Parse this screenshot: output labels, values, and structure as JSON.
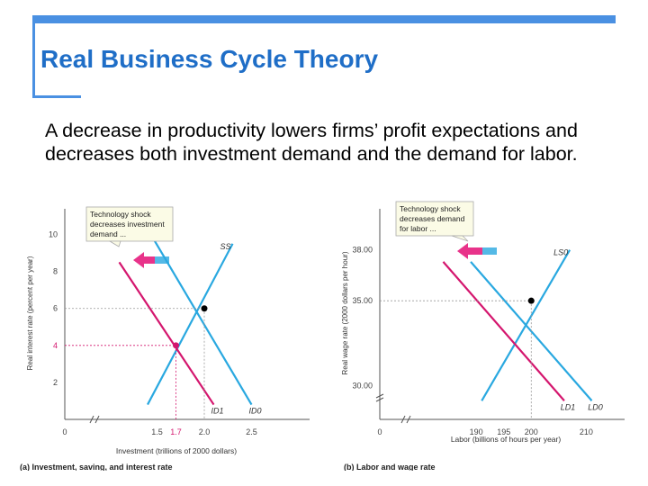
{
  "slide": {
    "title": "Real Business Cycle Theory",
    "body": "A decrease in productivity lowers firms’ profit expectations and decreases both investment demand and the demand for labor."
  },
  "colors": {
    "accent": "#4a90e2",
    "title": "#1f6ec7",
    "curve_blue": "#29a8e0",
    "curve_magenta": "#d4166e",
    "arrow": "#e8338a",
    "callout_bg": "#fbfbe6"
  },
  "chart_data": [
    {
      "type": "line",
      "xlabel": "Investment (trillions of 2000 dollars)",
      "ylabel": "Real interest rate (percent per year)",
      "caption": "(a) Investment, saving, and interest rate",
      "xlim": [
        1.0,
        3.0
      ],
      "ylim": [
        0,
        11
      ],
      "x_ticks": [
        "0",
        "1.5",
        "1.7",
        "2.0",
        "2.5"
      ],
      "x_tick_values": [
        0,
        1.5,
        1.7,
        2.0,
        2.5
      ],
      "y_ticks": [
        "2",
        "4",
        "6",
        "8",
        "10"
      ],
      "y_tick_values": [
        2,
        4,
        6,
        8,
        10
      ],
      "series": [
        {
          "name": "SS",
          "color": "#29a8e0",
          "points": [
            [
              1.4,
              0.8
            ],
            [
              2.3,
              9.5
            ]
          ]
        },
        {
          "name": "ID0",
          "color": "#29a8e0",
          "points": [
            [
              1.4,
              10.3
            ],
            [
              2.5,
              0.8
            ]
          ]
        },
        {
          "name": "ID1",
          "color": "#d4166e",
          "points": [
            [
              1.1,
              8.5
            ],
            [
              2.1,
              0.8
            ]
          ]
        }
      ],
      "points": [
        {
          "x": 2.0,
          "y": 6.0,
          "color": "#000000"
        },
        {
          "x": 1.7,
          "y": 4.0,
          "color": "#d4166e"
        }
      ],
      "highlighted_tick": {
        "x": "1.7",
        "y": "4"
      },
      "callout": [
        "Technology shock",
        "decreases investment",
        "demand ..."
      ]
    },
    {
      "type": "line",
      "xlabel": "Labor (billions of hours per year)",
      "ylabel": "Real wage rate (2000 dollars per hour)",
      "caption": "(b) Labor and wage rate",
      "xlim": [
        180,
        215
      ],
      "ylim": [
        28,
        40
      ],
      "x_ticks": [
        "0",
        "190",
        "195",
        "200",
        "210"
      ],
      "x_tick_values": [
        0,
        190,
        195,
        200,
        210
      ],
      "y_ticks": [
        "30.00",
        "35.00",
        "38.00"
      ],
      "y_tick_values": [
        30,
        35,
        38
      ],
      "series": [
        {
          "name": "LS0",
          "color": "#29a8e0",
          "points": [
            [
              191,
              29.1
            ],
            [
              207,
              38.0
            ]
          ]
        },
        {
          "name": "LD0",
          "color": "#29a8e0",
          "points": [
            [
              189,
              37.3
            ],
            [
              211,
              29.1
            ]
          ]
        },
        {
          "name": "LD1",
          "color": "#d4166e",
          "points": [
            [
              184,
              37.3
            ],
            [
              206,
              29.1
            ]
          ]
        }
      ],
      "points": [
        {
          "x": 200,
          "y": 35.0,
          "color": "#000000"
        }
      ],
      "callout": [
        "Technology shock",
        "decreases demand",
        "for labor ..."
      ]
    }
  ]
}
